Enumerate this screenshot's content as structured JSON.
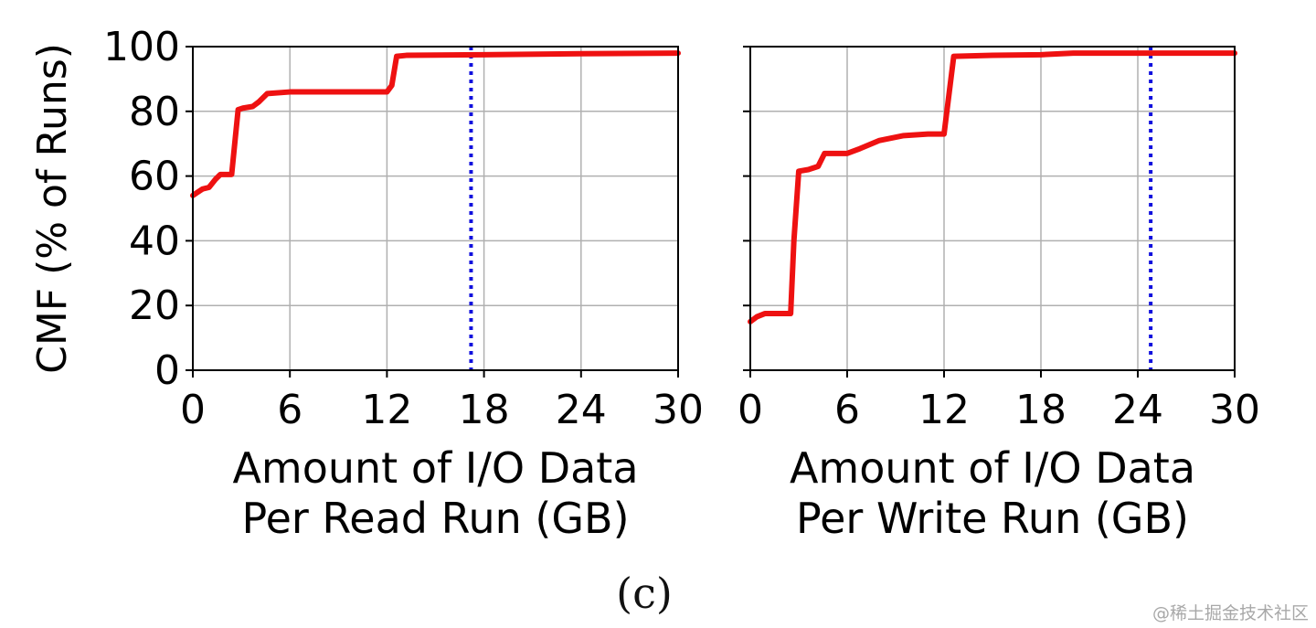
{
  "caption": "(c)",
  "watermark": "@稀土掘金技术社区",
  "colors": {
    "series": "#ee1111",
    "marker": "#1010dd",
    "grid": "#b0b0b0",
    "axis": "#000000"
  },
  "chart_data": [
    {
      "type": "line",
      "ylabel": "CMF (% of Runs)",
      "xlabel_lines": [
        "Amount of I/O Data",
        "Per Read Run (GB)"
      ],
      "xlim": [
        0,
        30
      ],
      "ylim": [
        0,
        100
      ],
      "xticks": [
        0,
        6,
        12,
        18,
        24,
        30
      ],
      "yticks": [
        0,
        20,
        40,
        60,
        80,
        100
      ],
      "grid": true,
      "series": [
        {
          "x": [
            0,
            0.3,
            0.6,
            1.0,
            1.4,
            1.7,
            2.4,
            2.8,
            3.1,
            3.7,
            4.1,
            4.6,
            6,
            8,
            10,
            12,
            12.3,
            12.6,
            13.2,
            18,
            24,
            30
          ],
          "y": [
            54,
            55,
            56,
            56.5,
            59,
            60.5,
            60.5,
            80.5,
            81,
            81.5,
            83,
            85.5,
            86,
            86,
            86,
            86,
            88,
            97,
            97.3,
            97.5,
            97.8,
            98
          ]
        }
      ],
      "vline": {
        "x": 17.2
      }
    },
    {
      "type": "line",
      "ylabel": "",
      "xlabel_lines": [
        "Amount of I/O Data",
        "Per Write Run (GB)"
      ],
      "xlim": [
        0,
        30
      ],
      "ylim": [
        0,
        100
      ],
      "xticks": [
        0,
        6,
        12,
        18,
        24,
        30
      ],
      "yticks": [
        0,
        20,
        40,
        60,
        80,
        100
      ],
      "grid": true,
      "series": [
        {
          "x": [
            0,
            0.4,
            0.9,
            2.5,
            2.7,
            3.0,
            3.6,
            4.2,
            4.6,
            6,
            6.8,
            8,
            9.5,
            11,
            12,
            12.3,
            12.6,
            15,
            18,
            20,
            24,
            30
          ],
          "y": [
            15,
            16.5,
            17.5,
            17.5,
            40,
            61.5,
            62,
            63,
            67,
            67,
            68.5,
            71,
            72.5,
            73,
            73,
            85,
            97,
            97.3,
            97.5,
            98,
            98,
            98
          ]
        }
      ],
      "vline": {
        "x": 24.8
      }
    }
  ]
}
